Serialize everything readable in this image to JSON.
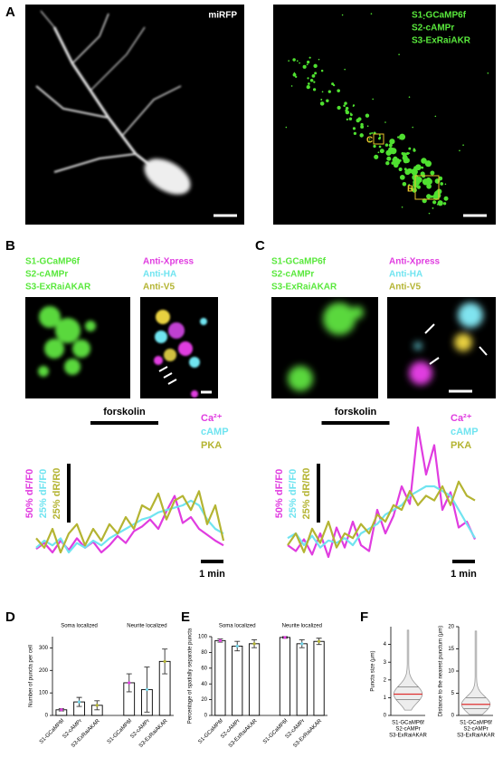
{
  "panels": {
    "A": {
      "letter": "A",
      "left": {
        "label": "miRFP"
      },
      "right": {
        "labels": [
          "S1-GCaMP6f",
          "S2-cAMPr",
          "S3-ExRaiAKR"
        ],
        "box_labels": [
          "C",
          "B"
        ]
      }
    },
    "B": {
      "letter": "B",
      "sensor_labels": [
        "S1-GCaMP6f",
        "S2-cAMPr",
        "S3-ExRaiAKAR"
      ],
      "stain_labels": [
        "Anti-Xpress",
        "Anti-HA",
        "Anti-V5"
      ]
    },
    "C": {
      "letter": "C",
      "sensor_labels": [
        "S1-GCaMP6f",
        "S2-cAMPr",
        "S3-ExRaiAKAR"
      ],
      "stain_labels": [
        "Anti-Xpress",
        "Anti-HA",
        "Anti-V5"
      ]
    },
    "D": {
      "letter": "D"
    },
    "E": {
      "letter": "E"
    },
    "F": {
      "letter": "F"
    }
  },
  "chart_data": [
    {
      "type": "line",
      "x": [
        0,
        0.36,
        0.72,
        1.08,
        1.44,
        1.8,
        2.16,
        2.52,
        2.88,
        3.24,
        3.6,
        3.96,
        4.32,
        4.68,
        5.04,
        5.4,
        5.76,
        6.12,
        6.48,
        6.84,
        7.2,
        7.56,
        7.92,
        8.28
      ],
      "forskolin": {
        "label": "forskolin",
        "x": [
          2.4,
          5.4
        ]
      },
      "x_scale_bar": {
        "value": 1,
        "label": "1 min"
      },
      "series": [
        {
          "name": "Ca²⁺",
          "color": "#e03ce0",
          "scale_bar": {
            "value": 50,
            "label": "50% dF/F0"
          },
          "values": [
            3,
            8,
            0,
            10,
            2,
            12,
            4,
            9,
            0,
            6,
            14,
            8,
            18,
            22,
            28,
            20,
            35,
            48,
            25,
            30,
            20,
            15,
            10,
            6
          ]
        },
        {
          "name": "cAMP",
          "color": "#70e4f0",
          "scale_bar": {
            "value": 25,
            "label": "25% dF/F0"
          },
          "values": [
            2,
            5,
            3,
            6,
            0,
            4,
            2,
            5,
            3,
            6,
            8,
            10,
            12,
            14,
            15,
            17,
            18,
            19,
            20,
            22,
            20,
            14,
            10,
            8
          ]
        },
        {
          "name": "PKA",
          "color": "#b4b432",
          "scale_bar": {
            "value": 25,
            "label": "25% dR/R0"
          },
          "values": [
            6,
            2,
            10,
            0,
            8,
            12,
            3,
            10,
            5,
            12,
            8,
            15,
            10,
            20,
            18,
            25,
            14,
            22,
            24,
            18,
            26,
            12,
            20,
            5
          ]
        }
      ]
    },
    {
      "type": "line",
      "x": [
        0,
        0.36,
        0.72,
        1.08,
        1.44,
        1.8,
        2.16,
        2.52,
        2.88,
        3.24,
        3.6,
        3.96,
        4.32,
        4.68,
        5.04,
        5.4,
        5.76,
        6.12,
        6.48,
        6.84,
        7.2,
        7.56,
        7.92,
        8.28
      ],
      "forskolin": {
        "label": "forskolin",
        "x": [
          1.5,
          4.5
        ]
      },
      "x_scale_bar": {
        "value": 1,
        "label": "1 min"
      },
      "series": [
        {
          "name": "Ca²⁺",
          "color": "#e03ce0",
          "scale_bar": {
            "value": 50,
            "label": "50% dF/F0"
          },
          "values": [
            10,
            5,
            15,
            2,
            20,
            0,
            25,
            8,
            30,
            10,
            5,
            40,
            20,
            35,
            60,
            45,
            110,
            70,
            95,
            40,
            55,
            25,
            30,
            15
          ]
        },
        {
          "name": "cAMP",
          "color": "#70e4f0",
          "scale_bar": {
            "value": 25,
            "label": "25% dF/F0"
          },
          "values": [
            8,
            10,
            5,
            9,
            4,
            7,
            6,
            8,
            5,
            10,
            12,
            14,
            18,
            20,
            22,
            26,
            28,
            30,
            30,
            28,
            26,
            20,
            14,
            8
          ]
        },
        {
          "name": "PKA",
          "color": "#b4b432",
          "scale_bar": {
            "value": 25,
            "label": "25% dR/R0"
          },
          "values": [
            5,
            10,
            2,
            12,
            6,
            15,
            4,
            10,
            8,
            14,
            10,
            18,
            15,
            22,
            20,
            28,
            22,
            26,
            24,
            30,
            22,
            32,
            26,
            24
          ]
        }
      ]
    },
    {
      "type": "bar",
      "ylabel": "Number of puncta per cell",
      "group_labels": [
        "Soma localized",
        "Neurite localized"
      ],
      "categories": [
        "S1-GCaMP6f",
        "S2-cAMPr",
        "S3-ExRaiAKAR",
        "S1-GCaMP6f",
        "S2-cAMPr",
        "S3-ExRaiAKAR"
      ],
      "values": [
        25,
        60,
        45,
        145,
        115,
        240
      ],
      "errors": [
        5,
        20,
        20,
        40,
        100,
        55
      ],
      "color": "#ffffff",
      "ylim": [
        0,
        350
      ],
      "yticks": [
        0,
        100,
        200,
        300
      ]
    },
    {
      "type": "bar",
      "ylabel": "Percentage of spatially separate puncta",
      "group_labels": [
        "Soma localized",
        "Neurite localized"
      ],
      "categories": [
        "S1-GCaMP6f",
        "S2-cAMPr",
        "S3-ExRaiAKAR",
        "S1-GCaMP6f",
        "S2-cAMPr",
        "S3-ExRaiAKAR"
      ],
      "values": [
        95,
        88,
        91,
        99,
        91,
        94
      ],
      "errors": [
        2,
        6,
        5,
        1,
        5,
        4
      ],
      "color": "#ffffff",
      "ylim": [
        0,
        100
      ],
      "yticks": [
        0,
        20,
        40,
        60,
        80,
        100
      ]
    },
    {
      "type": "violin",
      "ylabel": "Puncta size (μm)",
      "category": [
        "S1-GCaMP6f",
        "S2-cAMPr",
        "S3-ExRaiAKAR"
      ],
      "ylim": [
        0,
        5
      ],
      "yticks": [
        0,
        1,
        2,
        3,
        4
      ],
      "min": 0.3,
      "max": 4.8,
      "median": 1.2,
      "quartiles": [
        0.9,
        1.6
      ],
      "color": "#9a9a9a"
    },
    {
      "type": "violin",
      "ylabel": "Distance to the nearest punctum (μm)",
      "category": [
        "S1-GCaMP6f",
        "S2-cAMPr",
        "S3-ExRaiAKAR"
      ],
      "ylim": [
        0,
        20
      ],
      "yticks": [
        0,
        5,
        10,
        15,
        20
      ],
      "min": 0.2,
      "max": 19,
      "median": 2.5,
      "quartiles": [
        1.5,
        4
      ],
      "color": "#9a9a9a"
    }
  ]
}
